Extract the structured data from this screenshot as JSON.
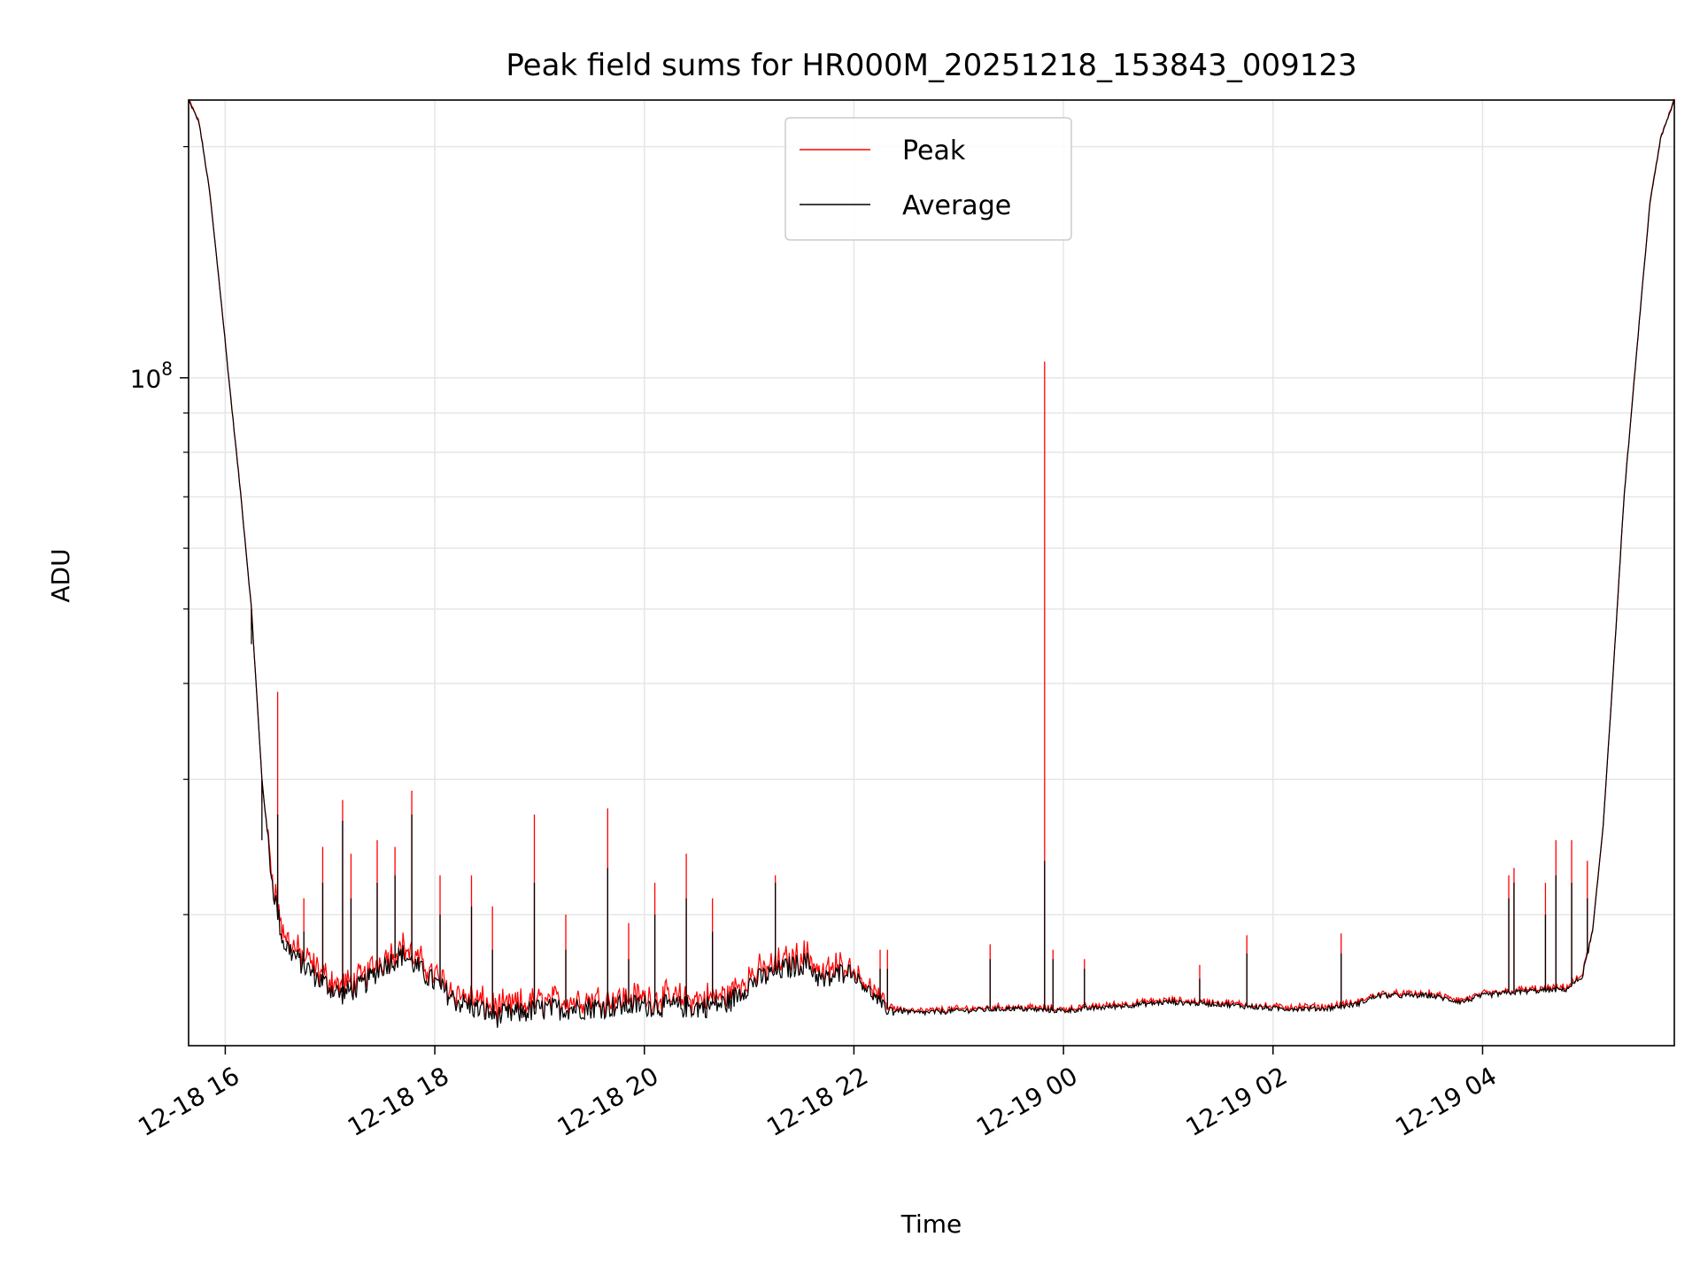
{
  "chart_data": {
    "type": "line",
    "title": "Peak field sums for HR000M_20251218_153843_009123",
    "xlabel": "Time",
    "ylabel": "ADU",
    "yscale": "log",
    "ylim": [
      13500000,
      230000000
    ],
    "y_major_tick": {
      "value": 100000000,
      "label_base": "10",
      "label_exp": "8"
    },
    "y_minor_ticks": [
      20000000,
      30000000,
      40000000,
      50000000,
      60000000,
      70000000,
      80000000,
      90000000,
      200000000
    ],
    "xlim_hours": [
      15.65,
      29.83
    ],
    "x_ticks": [
      {
        "hour": 16,
        "label": "12-18 16"
      },
      {
        "hour": 18,
        "label": "12-18 18"
      },
      {
        "hour": 20,
        "label": "12-18 20"
      },
      {
        "hour": 22,
        "label": "12-18 22"
      },
      {
        "hour": 24,
        "label": "12-19 00"
      },
      {
        "hour": 26,
        "label": "12-19 02"
      },
      {
        "hour": 28,
        "label": "12-19 04"
      }
    ],
    "grid": true,
    "legend_position": "top-center",
    "series": [
      {
        "name": "Peak",
        "color": "#ff0000"
      },
      {
        "name": "Average",
        "color": "#000000"
      }
    ],
    "baseline_adu": [
      [
        15.65,
        230000000
      ],
      [
        15.75,
        215000000
      ],
      [
        15.85,
        175000000
      ],
      [
        15.95,
        130000000
      ],
      [
        16.05,
        95000000
      ],
      [
        16.15,
        70000000
      ],
      [
        16.25,
        50000000
      ],
      [
        16.35,
        30000000
      ],
      [
        16.45,
        22000000
      ],
      [
        16.55,
        18500000
      ],
      [
        16.7,
        17500000
      ],
      [
        16.9,
        16500000
      ],
      [
        17.1,
        15800000
      ],
      [
        17.3,
        16200000
      ],
      [
        17.5,
        17200000
      ],
      [
        17.7,
        17800000
      ],
      [
        17.9,
        16800000
      ],
      [
        18.2,
        15500000
      ],
      [
        18.6,
        14800000
      ],
      [
        19.0,
        15100000
      ],
      [
        19.5,
        15200000
      ],
      [
        20.0,
        15300000
      ],
      [
        20.5,
        15200000
      ],
      [
        20.8,
        15400000
      ],
      [
        21.0,
        16300000
      ],
      [
        21.3,
        17000000
      ],
      [
        21.55,
        17400000
      ],
      [
        21.7,
        16400000
      ],
      [
        21.95,
        17000000
      ],
      [
        22.1,
        16200000
      ],
      [
        22.3,
        15100000
      ],
      [
        22.6,
        14900000
      ],
      [
        23.0,
        15000000
      ],
      [
        23.5,
        15100000
      ],
      [
        24.0,
        15000000
      ],
      [
        24.5,
        15200000
      ],
      [
        25.0,
        15400000
      ],
      [
        25.5,
        15300000
      ],
      [
        26.0,
        15100000
      ],
      [
        26.5,
        15100000
      ],
      [
        26.8,
        15300000
      ],
      [
        27.0,
        15700000
      ],
      [
        27.5,
        15700000
      ],
      [
        27.8,
        15400000
      ],
      [
        28.0,
        15700000
      ],
      [
        28.4,
        15900000
      ],
      [
        28.8,
        16000000
      ],
      [
        28.95,
        16600000
      ],
      [
        29.05,
        19000000
      ],
      [
        29.15,
        26000000
      ],
      [
        29.25,
        42000000
      ],
      [
        29.35,
        70000000
      ],
      [
        29.5,
        120000000
      ],
      [
        29.6,
        170000000
      ],
      [
        29.7,
        205000000
      ],
      [
        29.83,
        230000000
      ]
    ],
    "peak_spikes": [
      [
        16.25,
        47000000,
        45000000
      ],
      [
        16.35,
        28000000,
        25000000
      ],
      [
        16.5,
        39000000,
        27000000
      ],
      [
        16.75,
        21000000,
        19000000
      ],
      [
        16.93,
        24500000,
        22000000
      ],
      [
        17.12,
        28200000,
        26500000
      ],
      [
        17.2,
        24000000,
        21000000
      ],
      [
        17.45,
        25000000,
        22000000
      ],
      [
        17.62,
        24500000,
        22500000
      ],
      [
        17.78,
        29000000,
        27000000
      ],
      [
        18.05,
        22500000,
        20000000
      ],
      [
        18.35,
        22500000,
        20500000
      ],
      [
        18.55,
        20500000,
        18000000
      ],
      [
        18.95,
        27000000,
        22000000
      ],
      [
        19.25,
        20000000,
        18000000
      ],
      [
        19.65,
        27500000,
        23000000
      ],
      [
        19.85,
        19500000,
        17500000
      ],
      [
        20.1,
        22000000,
        20000000
      ],
      [
        20.4,
        24000000,
        21000000
      ],
      [
        20.65,
        21000000,
        19000000
      ],
      [
        21.25,
        22500000,
        22000000
      ],
      [
        22.25,
        18000000,
        17000000
      ],
      [
        22.32,
        18000000,
        17000000
      ],
      [
        23.3,
        18300000,
        17500000
      ],
      [
        23.82,
        105000000,
        23500000
      ],
      [
        23.9,
        18000000,
        17500000
      ],
      [
        24.2,
        17500000,
        17000000
      ],
      [
        25.3,
        17200000,
        16500000
      ],
      [
        25.75,
        18800000,
        17800000
      ],
      [
        26.65,
        18900000,
        17800000
      ],
      [
        28.25,
        22500000,
        21000000
      ],
      [
        28.3,
        23000000,
        22000000
      ],
      [
        28.6,
        22000000,
        20000000
      ],
      [
        28.7,
        25000000,
        22500000
      ],
      [
        28.85,
        25000000,
        22000000
      ],
      [
        29.0,
        23500000,
        21000000
      ]
    ]
  }
}
